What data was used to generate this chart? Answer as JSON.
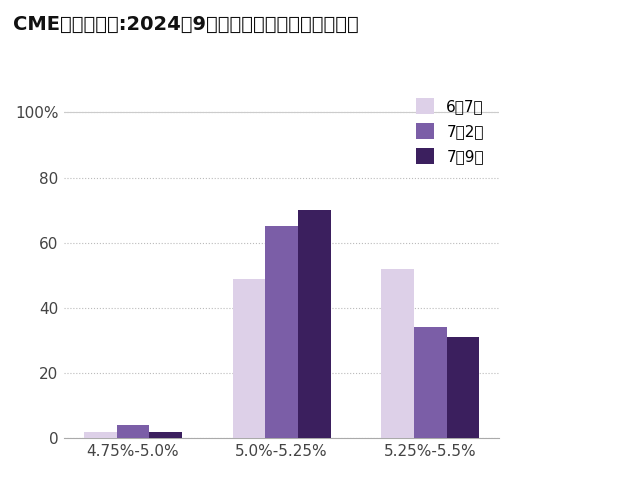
{
  "title": "CME美联储观察:2024年9月联邦基金利率目标区间预期",
  "categories": [
    "4.75%-5.0%",
    "5.0%-5.25%",
    "5.25%-5.5%"
  ],
  "series": [
    {
      "label": "6月7日",
      "color": "#ddd0e8",
      "values": [
        2,
        49,
        52
      ]
    },
    {
      "label": "7月2日",
      "color": "#7b5ea7",
      "values": [
        4,
        65,
        34
      ]
    },
    {
      "label": "7月9日",
      "color": "#3b1f5e",
      "values": [
        2,
        70,
        31
      ]
    }
  ],
  "ylim": [
    0,
    107
  ],
  "yticks": [
    0,
    20,
    40,
    60,
    80,
    100
  ],
  "ytick_extra_label": "100%",
  "background_color": "#ffffff",
  "title_fontsize": 14,
  "legend_fontsize": 11,
  "tick_fontsize": 11,
  "bar_width": 0.22
}
